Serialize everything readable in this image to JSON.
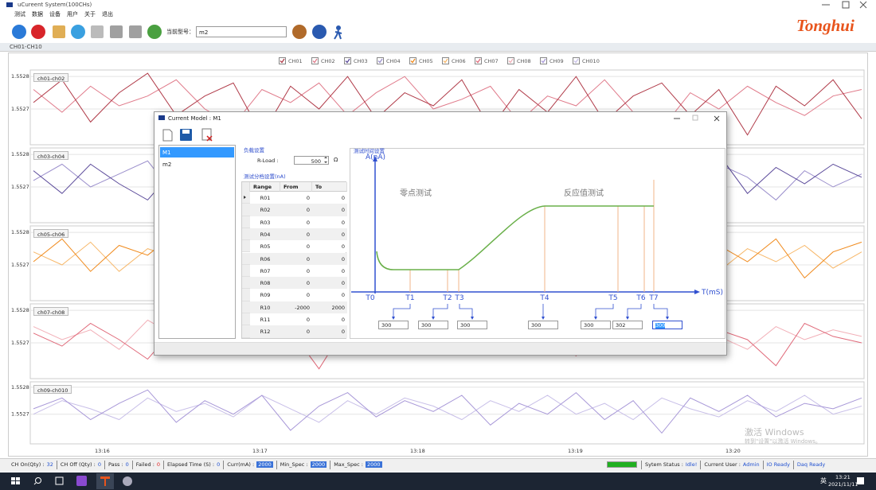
{
  "window": {
    "title": "uCureent System(100CHs)",
    "menu": [
      "测试",
      "数据",
      "设备",
      "用户",
      "关于",
      "退出"
    ],
    "model_label": "当前型号：",
    "model_value": "m2",
    "logo": "Tonghui"
  },
  "panel_title": "CH01-CH10",
  "chart_data": [
    {
      "type": "line",
      "label": "ch01-ch02",
      "ylim": [
        1.55259,
        1.55282
      ],
      "yticks": [
        1.5528,
        1.5527
      ],
      "grid": true,
      "series": [
        {
          "name": "CH01",
          "color": "#b03a48",
          "values": [
            1.55272,
            1.55279,
            1.55266,
            1.55275,
            1.55281,
            1.55268,
            1.55274,
            1.55278,
            1.55262,
            1.55277,
            1.5527,
            1.5528,
            1.55267,
            1.55275,
            1.55271,
            1.55279,
            1.55264,
            1.55276,
            1.55269,
            1.5528,
            1.55266,
            1.55274,
            1.55278,
            1.55268,
            1.55276,
            1.55262,
            1.55277,
            1.55271,
            1.55279,
            1.55267
          ]
        },
        {
          "name": "CH02",
          "color": "#e07a8a",
          "values": [
            1.55276,
            1.55269,
            1.55277,
            1.55271,
            1.55274,
            1.55279,
            1.5527,
            1.55265,
            1.55276,
            1.55272,
            1.55278,
            1.55268,
            1.55275,
            1.5528,
            1.5527,
            1.55273,
            1.55277,
            1.55266,
            1.55274,
            1.55271,
            1.55279,
            1.55269,
            1.55264,
            1.55275,
            1.5527,
            1.55277,
            1.55272,
            1.55268,
            1.55274,
            1.55276
          ]
        }
      ]
    },
    {
      "type": "line",
      "label": "ch03-ch04",
      "ylim": [
        1.55259,
        1.55282
      ],
      "yticks": [
        1.5528,
        1.5527
      ],
      "grid": true,
      "series": [
        {
          "name": "CH03",
          "color": "#5b4a9a",
          "values": [
            1.55275,
            1.55268,
            1.55277,
            1.55271,
            1.55266,
            1.55276,
            1.55272,
            1.55279,
            1.55265,
            1.55274,
            1.5527,
            1.55277,
            1.55268,
            1.55273,
            1.55263,
            1.55276,
            1.55271,
            1.55278,
            1.55269,
            1.55274,
            1.55267,
            1.55277,
            1.55262,
            1.55275,
            1.5528,
            1.55268,
            1.55276,
            1.55271,
            1.55277,
            1.55273
          ]
        },
        {
          "name": "CH04",
          "color": "#9b8fcc",
          "values": [
            1.55272,
            1.55277,
            1.5527,
            1.55274,
            1.55278,
            1.55267,
            1.55273,
            1.55269,
            1.55276,
            1.55271,
            1.55275,
            1.55266,
            1.55277,
            1.55272,
            1.55274,
            1.55269,
            1.55278,
            1.5527,
            1.55273,
            1.55267,
            1.55276,
            1.55271,
            1.55274,
            1.55269,
            1.55277,
            1.55273,
            1.55266,
            1.55275,
            1.5527,
            1.55274
          ]
        }
      ]
    },
    {
      "type": "line",
      "label": "ch05-ch06",
      "ylim": [
        1.55259,
        1.55282
      ],
      "yticks": [
        1.5528,
        1.5527
      ],
      "grid": true,
      "series": [
        {
          "name": "CH05",
          "color": "#f08a1c",
          "values": [
            1.55271,
            1.55278,
            1.55268,
            1.55276,
            1.55273,
            1.5528,
            1.55267,
            1.55275,
            1.5527,
            1.55279,
            1.55272,
            1.55266,
            1.55277,
            1.55271,
            1.55275,
            1.55264,
            1.55276,
            1.5527,
            1.55278,
            1.55273,
            1.55262,
            1.55274,
            1.55279,
            1.55268,
            1.55276,
            1.55271,
            1.55278,
            1.55266,
            1.55274,
            1.55277
          ]
        },
        {
          "name": "CH06",
          "color": "#f7b86a",
          "values": [
            1.55274,
            1.5527,
            1.55277,
            1.55268,
            1.55275,
            1.55272,
            1.55278,
            1.55269,
            1.55273,
            1.55276,
            1.55267,
            1.55274,
            1.55271,
            1.55277,
            1.55269,
            1.55275,
            1.55272,
            1.55278,
            1.55266,
            1.55274,
            1.5527,
            1.55276,
            1.55272,
            1.55277,
            1.55268,
            1.55275,
            1.55271,
            1.55276,
            1.55269,
            1.55274
          ]
        }
      ]
    },
    {
      "type": "line",
      "label": "ch07-ch08",
      "ylim": [
        1.55259,
        1.55282
      ],
      "yticks": [
        1.5528,
        1.5527
      ],
      "grid": true,
      "series": [
        {
          "name": "CH07",
          "color": "#e06a7a",
          "values": [
            1.55273,
            1.55269,
            1.55276,
            1.55271,
            1.55265,
            1.55275,
            1.5527,
            1.55277,
            1.55268,
            1.55274,
            1.55262,
            1.55276,
            1.55271,
            1.55278,
            1.55267,
            1.55274,
            1.55269,
            1.55276,
            1.55272,
            1.55266,
            1.55275,
            1.5527,
            1.55277,
            1.55268,
            1.55274,
            1.55271,
            1.55263,
            1.55276,
            1.55272,
            1.5527
          ]
        },
        {
          "name": "CH08",
          "color": "#f2b0b8",
          "values": [
            1.55275,
            1.55271,
            1.55274,
            1.55268,
            1.55277,
            1.55272,
            1.55269,
            1.55276,
            1.55273,
            1.5527,
            1.55277,
            1.55271,
            1.55274,
            1.55268,
            1.55276,
            1.55272,
            1.5527,
            1.55275,
            1.55271,
            1.55277,
            1.55269,
            1.55274,
            1.5527,
            1.55276,
            1.55272,
            1.55268,
            1.55275,
            1.55271,
            1.55274,
            1.55272
          ]
        }
      ]
    },
    {
      "type": "line",
      "label": "ch09-ch010",
      "ylim": [
        1.55259,
        1.55282
      ],
      "yticks": [
        1.5528,
        1.5527
      ],
      "grid": true,
      "x_labels": [
        "13:16",
        "13:17",
        "13:18",
        "13:19",
        "13:20"
      ],
      "series": [
        {
          "name": "CH09",
          "color": "#a898d8",
          "values": [
            1.55272,
            1.55276,
            1.55268,
            1.55274,
            1.55279,
            1.55267,
            1.55275,
            1.5527,
            1.55277,
            1.55264,
            1.55273,
            1.55278,
            1.55269,
            1.55275,
            1.55271,
            1.55277,
            1.55266,
            1.55274,
            1.5527,
            1.55278,
            1.55268,
            1.55275,
            1.55263,
            1.55276,
            1.55271,
            1.55277,
            1.55269,
            1.55274,
            1.55272,
            1.55276
          ]
        },
        {
          "name": "CH010",
          "color": "#c8bfe8",
          "values": [
            1.5527,
            1.55275,
            1.55272,
            1.55268,
            1.55276,
            1.55271,
            1.55274,
            1.55269,
            1.55277,
            1.55272,
            1.55267,
            1.55275,
            1.5527,
            1.55276,
            1.55273,
            1.55268,
            1.55275,
            1.55271,
            1.55277,
            1.5527,
            1.55274,
            1.55268,
            1.55276,
            1.55272,
            1.55269,
            1.55275,
            1.55271,
            1.55277,
            1.5527,
            1.55273
          ]
        }
      ]
    }
  ],
  "dialog": {
    "title": "Current Model : M1",
    "models": [
      "M1",
      "m2"
    ],
    "load_title": "负载设置",
    "rload_label": "R-Load :",
    "rload_value": "500",
    "rload_unit": "Ω",
    "range_title": "测试分档设置(nA)",
    "table": {
      "header": [
        "Range",
        "From",
        "To"
      ],
      "rows": [
        [
          "R01",
          0,
          0
        ],
        [
          "R02",
          0,
          0
        ],
        [
          "R03",
          0,
          0
        ],
        [
          "R04",
          0,
          0
        ],
        [
          "R05",
          0,
          0
        ],
        [
          "R06",
          0,
          0
        ],
        [
          "R07",
          0,
          0
        ],
        [
          "R08",
          0,
          0
        ],
        [
          "R09",
          0,
          0
        ],
        [
          "R10",
          -2000,
          2000
        ],
        [
          "R11",
          0,
          0
        ],
        [
          "R12",
          0,
          0
        ]
      ]
    },
    "timing": {
      "title": "测试时间设置",
      "y_axis": "A(nA)",
      "x_axis": "T(mS)",
      "zero_label": "零点测试",
      "response_label": "反应值测试",
      "markers": [
        "T0",
        "T1",
        "T2",
        "T3",
        "T4",
        "T5",
        "T6",
        "T7"
      ],
      "durations": [
        300,
        300,
        300,
        300,
        300,
        302,
        300
      ]
    }
  },
  "status": {
    "items": [
      {
        "label": "CH On(Qty) :",
        "value": "32"
      },
      {
        "label": "CH Off (Qty) :",
        "value": "0"
      },
      {
        "label": "Pass :",
        "value": "0"
      },
      {
        "label": "Failed :",
        "value": "0"
      },
      {
        "label": "Elapsed Time (S) :",
        "value": "0"
      },
      {
        "label": "Curr(mA) :",
        "value": "2000"
      },
      {
        "label": "Min_Spec :",
        "value": "2000"
      },
      {
        "label": "Max_Spec :",
        "value": "2000"
      }
    ],
    "right": [
      {
        "label": "Sytem Status :",
        "value": "Idle!"
      },
      {
        "label": "Current User :",
        "value": "Admin"
      },
      {
        "label": "IO Ready"
      },
      {
        "label": "Daq Ready"
      }
    ]
  },
  "watermark": {
    "title": "激活 Windows",
    "hint": "转到\"设置\"以激活 Windows。"
  },
  "taskbar": {
    "lang": "英",
    "time": "13:21",
    "date": "2021/11/11"
  }
}
